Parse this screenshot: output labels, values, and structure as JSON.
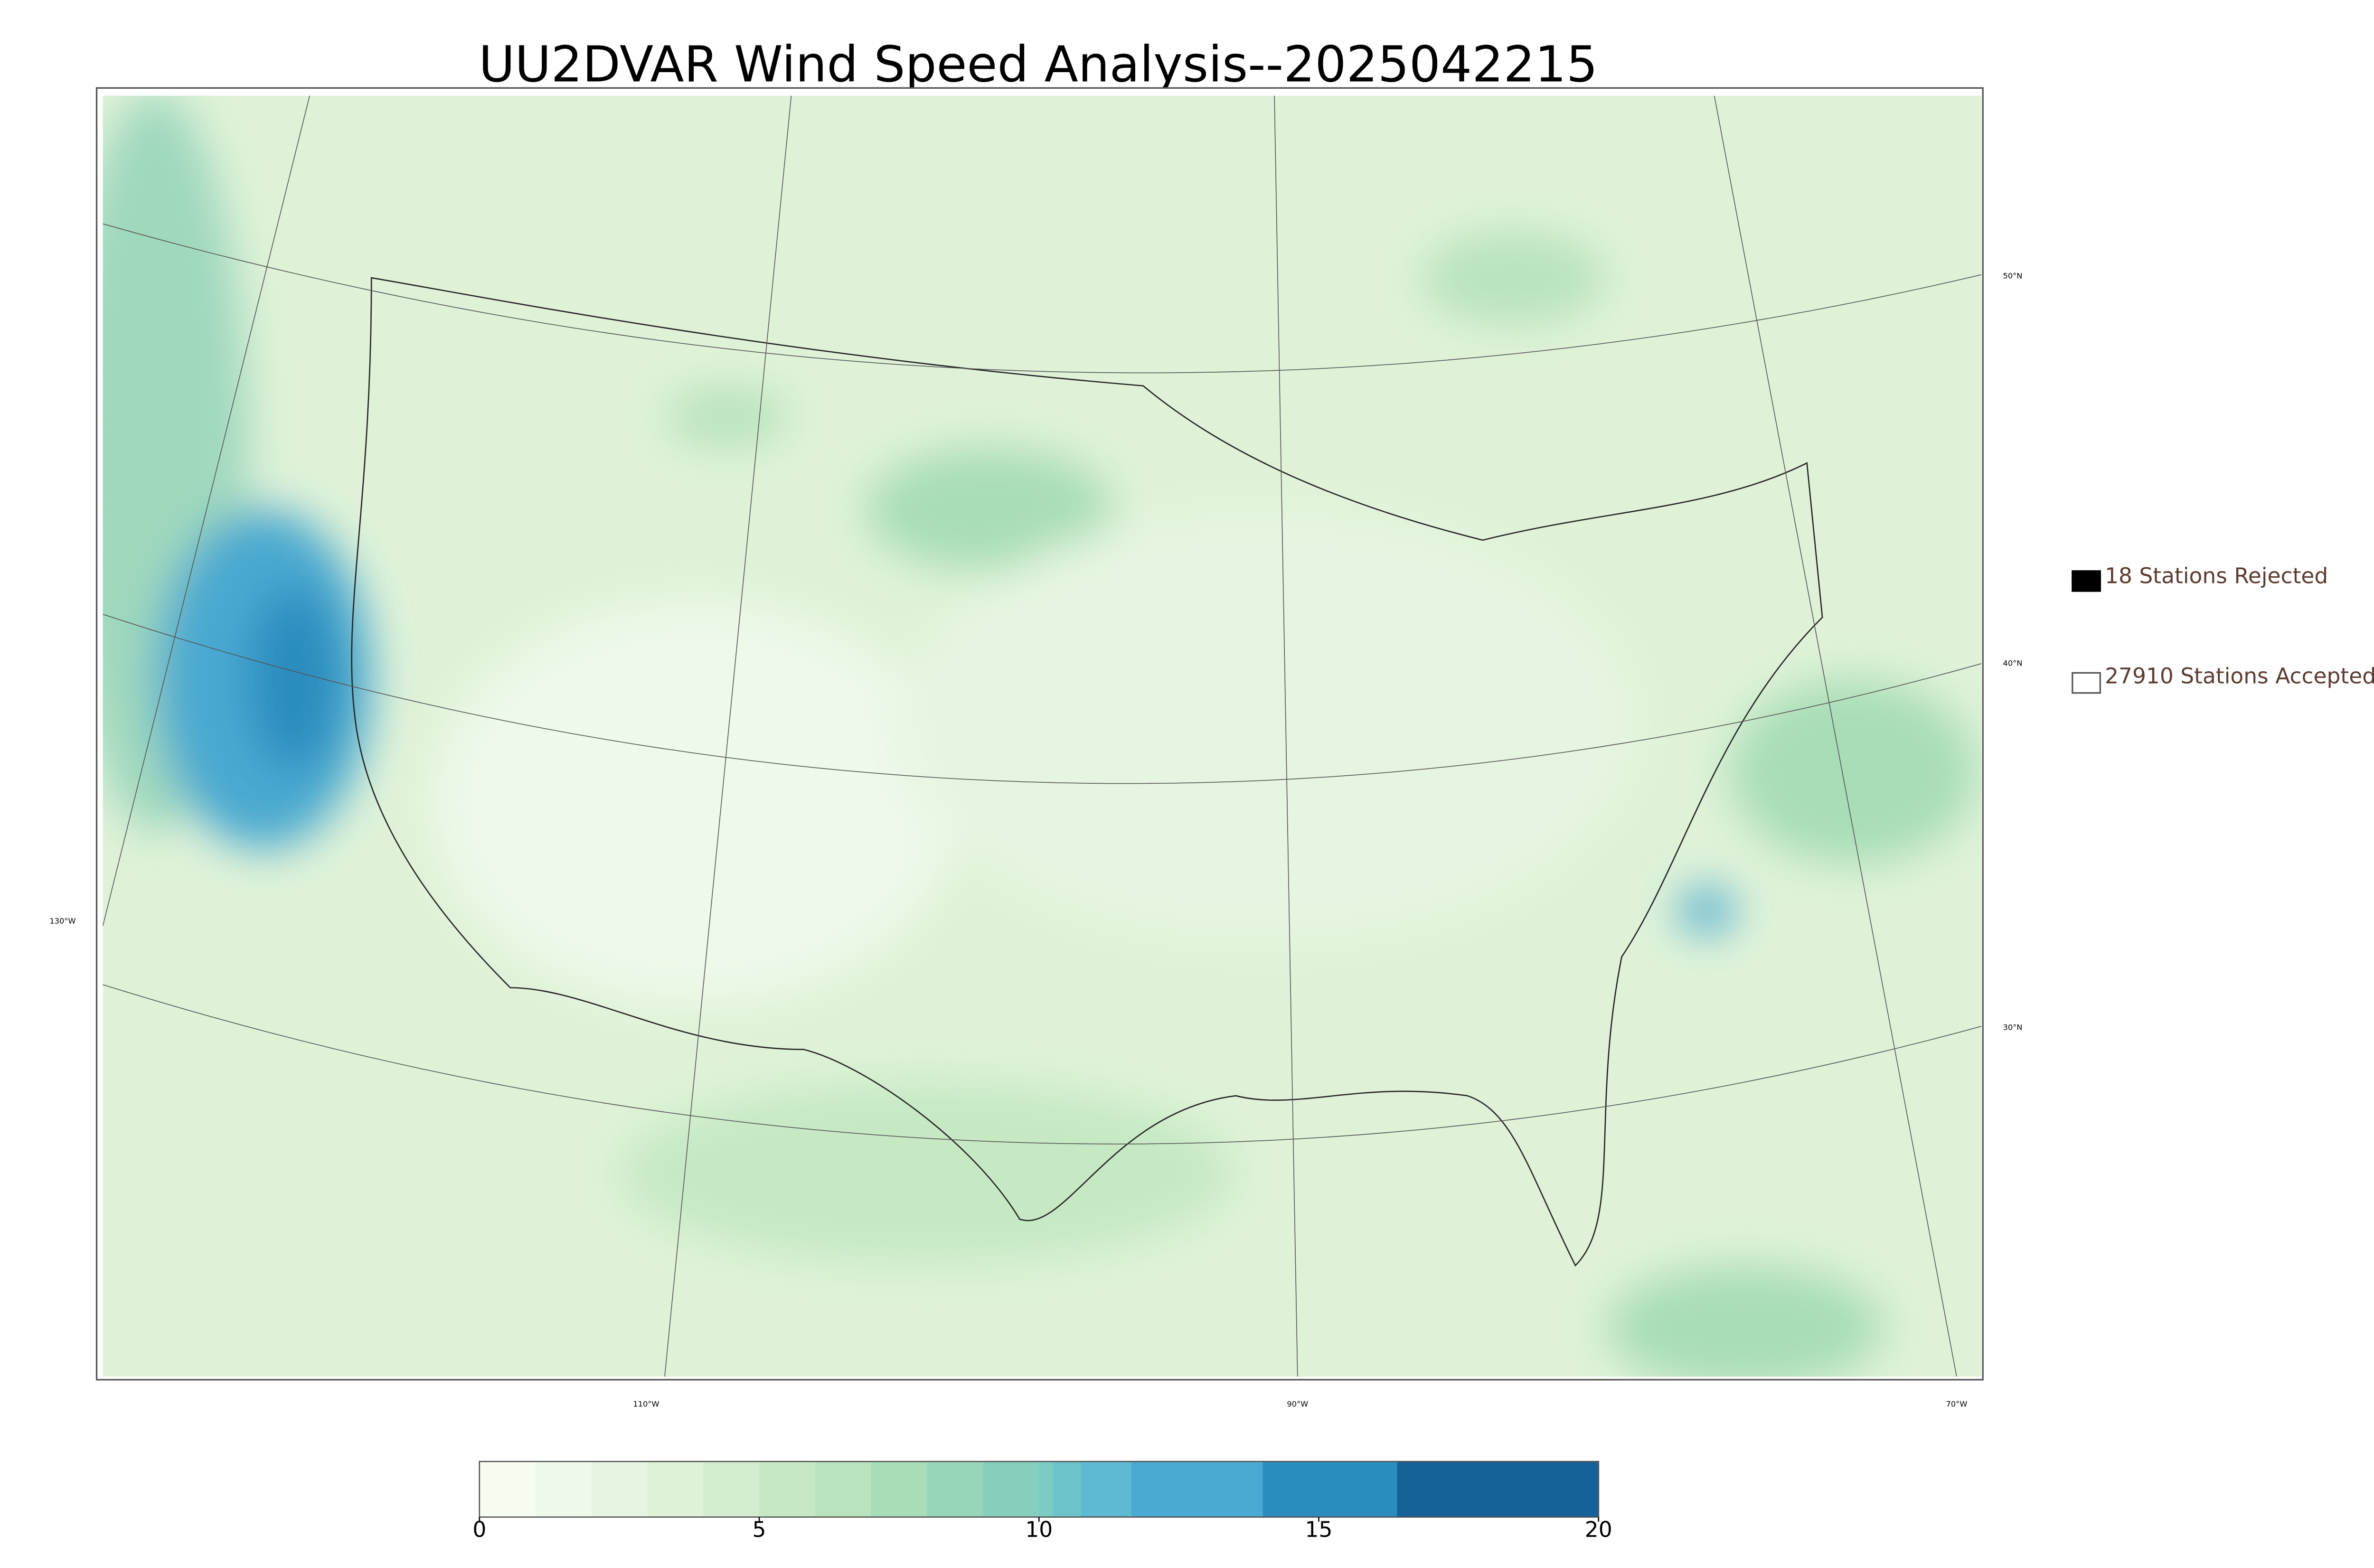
{
  "header": {
    "title": "UU2DVAR Wind Speed Analysis--2025042215"
  },
  "map": {
    "latitude_labels": [
      "50°N",
      "40°N",
      "30°N"
    ],
    "longitude_labels": [
      "130°W",
      "110°W",
      "90°W",
      "70°W"
    ]
  },
  "legend": {
    "entries": [
      "18 Stations Rejected",
      "27910 Stations Accepted"
    ]
  },
  "colorbar": {
    "lim": [
      0,
      20
    ],
    "ticks": [
      0,
      5,
      10,
      15,
      20
    ],
    "bounds": [
      0,
      1,
      2,
      3,
      4,
      5,
      6,
      7,
      8,
      9,
      10,
      10.25,
      10.75,
      11.65,
      14,
      16.4,
      20
    ],
    "colors": [
      "#f7fcf0",
      "#eff9ea",
      "#e6f5e1",
      "#ddf2d7",
      "#d3eece",
      "#c6e9c4",
      "#b8e3be",
      "#a8ddb7",
      "#97d6b9",
      "#86cfbd",
      "#7accc4",
      "#6cc3c9",
      "#5dbad0",
      "#4aa9d0",
      "#2b8cbe",
      "#156198"
    ]
  }
}
